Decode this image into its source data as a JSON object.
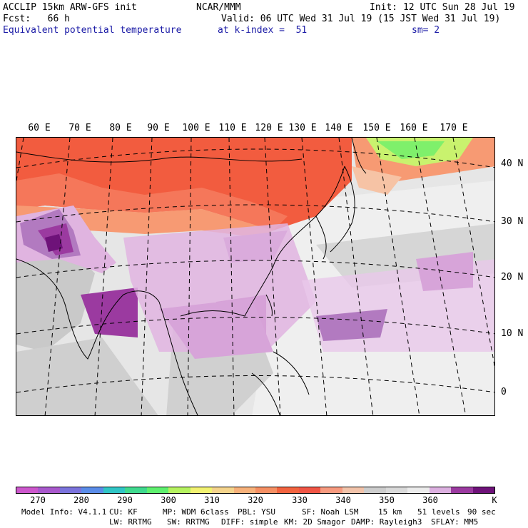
{
  "header": {
    "line1_left": "ACCLIP 15km ARW-GFS init",
    "line1_center": "NCAR/MMM",
    "line1_right": "Init: 12 UTC Sun 28 Jul 19",
    "line2_left": "Fcst:   66 h",
    "line2_right": "Valid: 06 UTC Wed 31 Jul 19 (15 JST Wed 31 Jul 19)",
    "line3_left": "Equivalent potential temperature",
    "line3_center": "at k-index =  51",
    "line3_right": "sm= 2"
  },
  "map": {
    "lon_labels": [
      "60 E",
      "70 E",
      "80 E",
      "90 E",
      "100 E",
      "110 E",
      "120 E",
      "130 E",
      "140 E",
      "150 E",
      "160 E",
      "170 E"
    ],
    "lat_labels": [
      "40 N",
      "30 N",
      "20 N",
      "10 N",
      "0"
    ],
    "colors": {
      "warm": "#f25c3f",
      "orange": "#f79a73",
      "peach": "#f6c3a5",
      "gray": "#c8c8c8",
      "lightgray": "#e2e2e2",
      "white": "#f7f7f7",
      "lilac": "#e0b4e0",
      "purple": "#9b3aa0",
      "darkpurple": "#6e1279",
      "green": "#7ff06b",
      "yellowgreen": "#c9f26e"
    }
  },
  "colorbar": {
    "colors": [
      "#cc57cc",
      "#a858cc",
      "#7b73dc",
      "#5a8ce8",
      "#30c5c5",
      "#3fd98e",
      "#5ef06e",
      "#b5f25f",
      "#f2f271",
      "#f5d48c",
      "#f7b17a",
      "#f58f63",
      "#f2633f",
      "#f05545",
      "#f79a7f",
      "#f2c3aa",
      "#cdcdcd",
      "#dadada",
      "#ececec",
      "#dcb0e0",
      "#9b3aa0",
      "#6e1279"
    ],
    "labels": [
      "270",
      "280",
      "290",
      "300",
      "310",
      "320",
      "330",
      "340",
      "350",
      "360",
      "K"
    ]
  },
  "footer": {
    "line1": [
      "Model Info: V4.1.1",
      "CU: KF",
      "MP: WDM 6class",
      "PBL: YSU",
      "SF: Noah LSM",
      "15 km",
      "51 levels",
      "90 sec"
    ],
    "line2": [
      "LW: RRTMG",
      "SW: RRTMG",
      "DIFF: simple",
      "KM: 2D Smagor",
      "DAMP: Rayleigh3",
      "SFLAY: MM5"
    ]
  }
}
